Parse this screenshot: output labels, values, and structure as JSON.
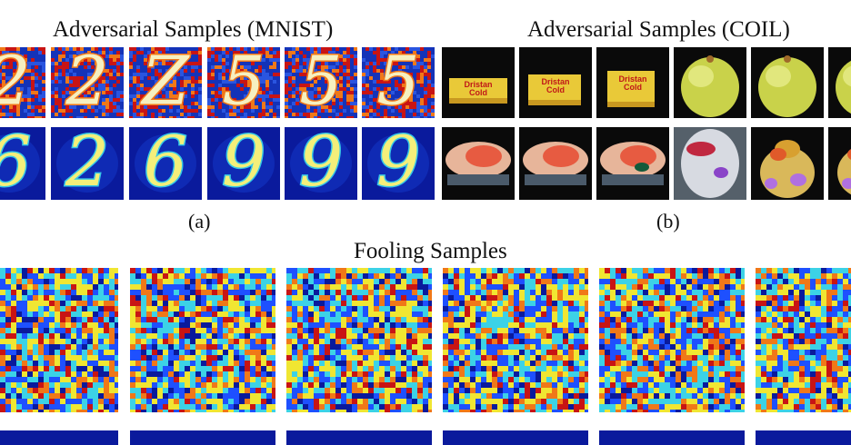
{
  "figure": {
    "panel_a": {
      "title": "Adversarial Samples (MNIST)",
      "caption": "(a)",
      "top_row_glyphs": [
        "2",
        "2",
        "Z",
        "5",
        "5",
        "5"
      ],
      "bottom_row_glyphs": [
        "6",
        "2",
        "6",
        "9",
        "9",
        "9"
      ]
    },
    "panel_b": {
      "title": "Adversarial Samples (COIL)",
      "caption": "(b)",
      "box_label_line1": "Dristan",
      "box_label_line2": "Cold"
    },
    "panel_c": {
      "title": "Fooling Samples"
    }
  },
  "colors": {
    "navy": "#0a1a9c",
    "jet_blue": "#1e50ff",
    "jet_cyan": "#3cd2e6",
    "jet_yellow": "#f0e632",
    "jet_orange": "#f07818",
    "jet_red": "#c81414"
  }
}
